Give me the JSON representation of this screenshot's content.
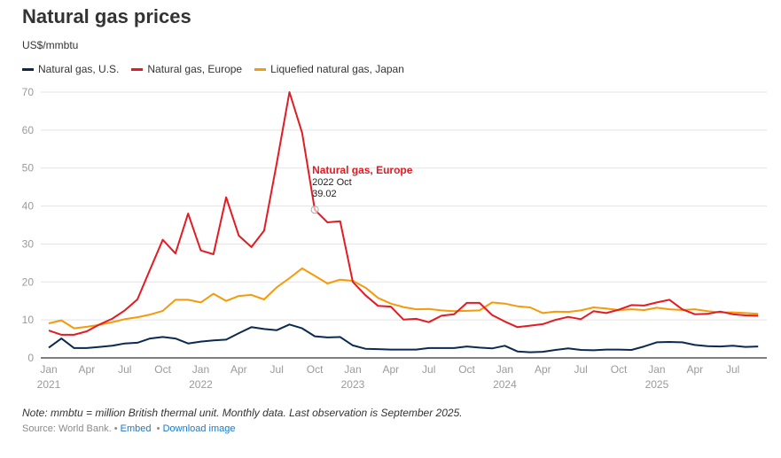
{
  "header": {
    "title": "Natural gas prices",
    "unit": "US$/mmbtu"
  },
  "legend": [
    {
      "label": "Natural gas, U.S.",
      "color": "#0b2a4f"
    },
    {
      "label": "Natural gas, Europe",
      "color": "#e31b23"
    },
    {
      "label": "Liquefied natural gas, Japan",
      "color": "#f59a0a"
    }
  ],
  "tooltip": {
    "series": "Natural gas, Europe",
    "period": "2022 Oct",
    "value": "39.02",
    "index": 21
  },
  "footer": {
    "note": "Note: mmbtu = million British thermal unit. Monthly data. Last observation is September 2025.",
    "source": "Source: World Bank.",
    "separator": "•",
    "embed_label": "Embed",
    "download_label": "Download image"
  },
  "chart_data": {
    "type": "line",
    "title": "Natural gas prices",
    "ylabel": "US$/mmbtu",
    "xlabel": "",
    "ylim": [
      0,
      70
    ],
    "yticks": [
      0,
      10,
      20,
      30,
      40,
      50,
      60,
      70
    ],
    "grid": true,
    "legend_position": "top-left",
    "x_start": "2021-01",
    "x_end": "2025-09",
    "xticks": [
      {
        "index": 0,
        "label": "Jan",
        "year": "2021"
      },
      {
        "index": 3,
        "label": "Apr",
        "year": ""
      },
      {
        "index": 6,
        "label": "Jul",
        "year": ""
      },
      {
        "index": 9,
        "label": "Oct",
        "year": ""
      },
      {
        "index": 12,
        "label": "Jan",
        "year": "2022"
      },
      {
        "index": 15,
        "label": "Apr",
        "year": ""
      },
      {
        "index": 18,
        "label": "Jul",
        "year": ""
      },
      {
        "index": 21,
        "label": "Oct",
        "year": ""
      },
      {
        "index": 24,
        "label": "Jan",
        "year": "2023"
      },
      {
        "index": 27,
        "label": "Apr",
        "year": ""
      },
      {
        "index": 30,
        "label": "Jul",
        "year": ""
      },
      {
        "index": 33,
        "label": "Oct",
        "year": ""
      },
      {
        "index": 36,
        "label": "Jan",
        "year": "2024"
      },
      {
        "index": 39,
        "label": "Apr",
        "year": ""
      },
      {
        "index": 42,
        "label": "Jul",
        "year": ""
      },
      {
        "index": 45,
        "label": "Oct",
        "year": ""
      },
      {
        "index": 48,
        "label": "Jan",
        "year": "2025"
      },
      {
        "index": 51,
        "label": "Apr",
        "year": ""
      },
      {
        "index": 54,
        "label": "Jul",
        "year": ""
      }
    ],
    "series": [
      {
        "name": "Natural gas, U.S.",
        "color": "#0b2a4f",
        "values": [
          2.7,
          5.1,
          2.6,
          2.6,
          2.9,
          3.2,
          3.8,
          4.0,
          5.1,
          5.5,
          5.1,
          3.8,
          4.3,
          4.6,
          4.8,
          6.5,
          8.1,
          7.6,
          7.3,
          8.8,
          7.8,
          5.7,
          5.4,
          5.5,
          3.3,
          2.4,
          2.3,
          2.2,
          2.2,
          2.2,
          2.6,
          2.6,
          2.6,
          3.0,
          2.7,
          2.5,
          3.2,
          1.7,
          1.5,
          1.6,
          2.1,
          2.5,
          2.1,
          2.0,
          2.2,
          2.2,
          2.1,
          3.0,
          4.1,
          4.2,
          4.1,
          3.4,
          3.1,
          3.0,
          3.2,
          2.9,
          3.0
        ]
      },
      {
        "name": "Natural gas, Europe",
        "color": "#e31b23",
        "values": [
          7.2,
          6.1,
          6.1,
          7.0,
          8.8,
          10.3,
          12.5,
          15.4,
          23.3,
          31.1,
          27.5,
          38.0,
          28.3,
          27.3,
          42.3,
          32.2,
          29.2,
          33.5,
          51.3,
          70.0,
          59.3,
          39.02,
          35.7,
          36.0,
          20.0,
          16.5,
          13.7,
          13.5,
          10.1,
          10.3,
          9.4,
          11.1,
          11.5,
          14.5,
          14.5,
          11.3,
          9.6,
          8.1,
          8.5,
          8.9,
          10.0,
          10.8,
          10.2,
          12.3,
          11.8,
          12.7,
          13.9,
          13.8,
          14.6,
          15.3,
          12.8,
          11.5,
          11.6,
          12.2,
          11.5,
          11.2,
          11.1
        ]
      },
      {
        "name": "Liquefied natural gas, Japan",
        "color": "#f59a0a",
        "values": [
          9.1,
          9.9,
          7.8,
          8.2,
          8.7,
          9.4,
          10.2,
          10.7,
          11.4,
          12.4,
          15.3,
          15.3,
          14.6,
          16.9,
          15.0,
          16.3,
          16.6,
          15.4,
          18.6,
          21.0,
          23.6,
          21.6,
          19.6,
          20.6,
          20.3,
          18.5,
          15.8,
          14.3,
          13.4,
          12.8,
          12.9,
          12.5,
          12.3,
          12.4,
          12.5,
          14.6,
          14.3,
          13.6,
          13.3,
          11.8,
          12.2,
          12.1,
          12.5,
          13.3,
          13.0,
          12.6,
          12.8,
          12.6,
          13.2,
          12.8,
          12.6,
          12.8,
          12.3,
          12.0,
          12.0,
          11.8,
          11.6
        ]
      }
    ]
  }
}
